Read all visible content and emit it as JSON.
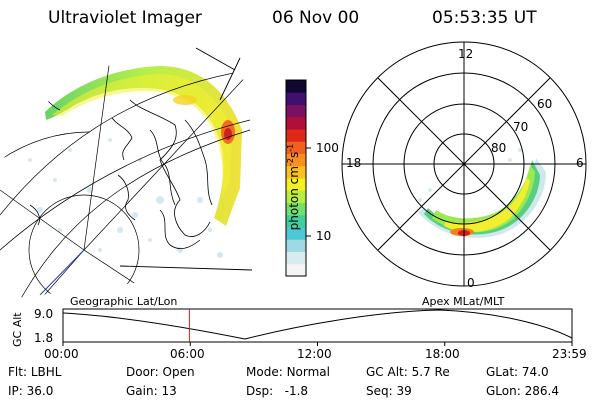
{
  "header": {
    "title": "Ultraviolet Imager",
    "date": "06 Nov 00",
    "time": "05:53:35 UT"
  },
  "colorbar": {
    "unit_label": "photon cm",
    "unit_sup1": "-2",
    "unit_s": "s",
    "unit_sup2": "-1",
    "ticks": [
      "100",
      "10"
    ],
    "scale": "log",
    "colors": [
      "#f4f4f4",
      "#d8ecf0",
      "#9fd9e4",
      "#4cc7d6",
      "#40d0a0",
      "#72e06a",
      "#b8ee40",
      "#f2f020",
      "#f8c020",
      "#f89020",
      "#f06020",
      "#e02818",
      "#b01038",
      "#7a1060",
      "#401070",
      "#100830"
    ]
  },
  "polar_plot": {
    "mlt_labels": {
      "top": "12",
      "left": "18",
      "right": "6",
      "bottom": "0"
    },
    "lat_labels": [
      "60",
      "70",
      "80"
    ]
  },
  "timeline": {
    "ylabel": "GC Alt",
    "y_top": "9.0",
    "y_bottom": "1.8",
    "left_title": "Geographic Lat/Lon",
    "right_title": "Apex MLat/MLT",
    "time_ticks": [
      "00:00",
      "06:00",
      "12:00",
      "18:00",
      "23:59"
    ],
    "current_time_fraction": 0.2483
  },
  "footer": {
    "row1": [
      {
        "label": "Flt:",
        "value": "LBHL"
      },
      {
        "label": "Door:",
        "value": "Open"
      },
      {
        "label": "Mode:",
        "value": "Normal"
      },
      {
        "label": "GC Alt:",
        "value": "5.7 Re"
      },
      {
        "label": "GLat:",
        "value": "74.0"
      }
    ],
    "row2": [
      {
        "label": "IP:",
        "value": "36.0"
      },
      {
        "label": "Gain:",
        "value": "13"
      },
      {
        "label": "Dsp:",
        "value": "-1.8"
      },
      {
        "label": "Seq:",
        "value": "39"
      },
      {
        "label": "GLon:",
        "value": "286.4"
      }
    ]
  }
}
